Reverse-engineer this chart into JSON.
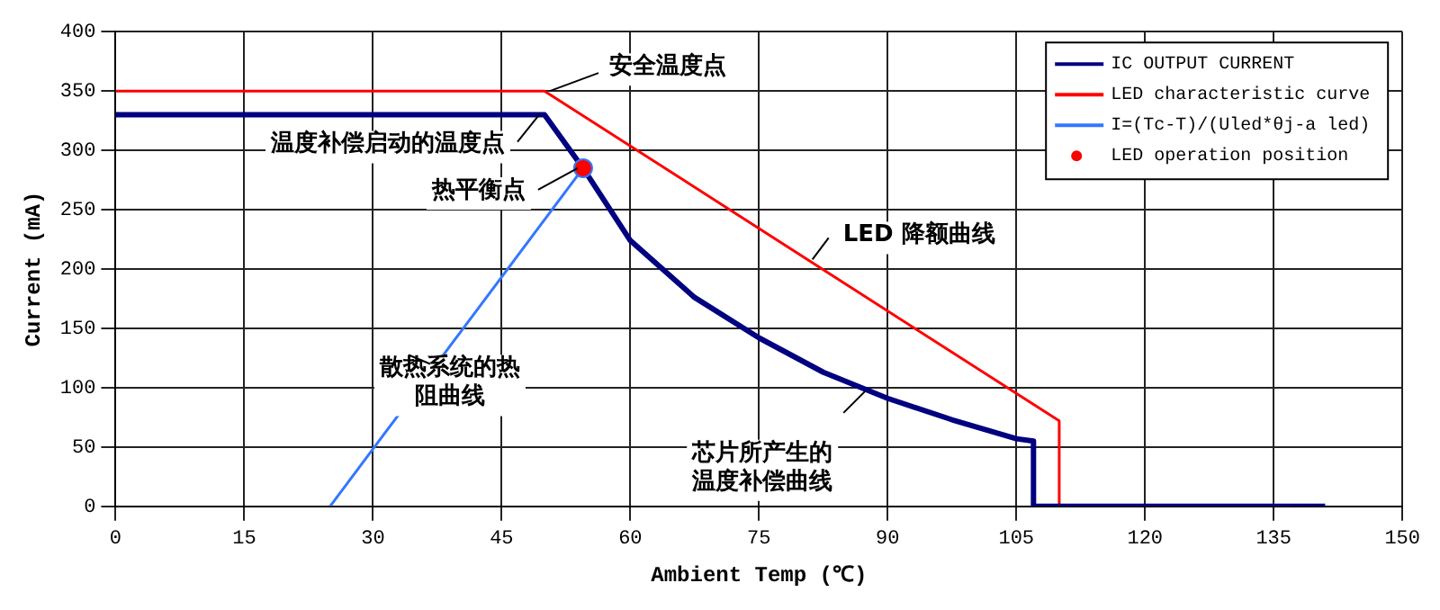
{
  "chart_data": {
    "type": "line",
    "xlabel": "Ambient Temp (℃)",
    "ylabel": "Current (mA)",
    "xlim": [
      0,
      150
    ],
    "xticks": [
      0,
      15,
      30,
      45,
      60,
      75,
      90,
      105,
      120,
      135,
      150
    ],
    "ylim": [
      0,
      400
    ],
    "yticks": [
      0,
      50,
      100,
      150,
      200,
      250,
      300,
      350,
      400
    ],
    "grid": true,
    "legend": "top right",
    "marker": "none",
    "line_style": "solid",
    "series": [
      {
        "name": "IC OUTPUT CURRENT",
        "color": "#000080",
        "x": [
          0,
          50,
          54.5,
          60,
          67.5,
          75,
          82.5,
          90,
          97.5,
          105,
          107,
          107,
          141
        ],
        "values": [
          330,
          330,
          285,
          224,
          176,
          142,
          113,
          91,
          73,
          57,
          55,
          0,
          0
        ]
      },
      {
        "name": "LED characteristic curve",
        "color": "#ff0000",
        "x": [
          0,
          50,
          110,
          110,
          137
        ],
        "values": [
          350,
          350,
          72,
          0,
          0
        ]
      },
      {
        "name": "I=(Tc-T)/(Uled*θj-a led)",
        "color": "#3377ff",
        "x": [
          25,
          54.5
        ],
        "values": [
          0,
          285
        ]
      },
      {
        "name": "LED operation position",
        "type": "scatter",
        "marker": "circle",
        "color": "#ff0000",
        "x": [
          54.5
        ],
        "values": [
          285
        ]
      }
    ],
    "annotations": [
      {
        "text": "安全温度点",
        "x": 50,
        "y": 350
      },
      {
        "text": "温度补偿启动的温度点",
        "x": 50,
        "y": 330
      },
      {
        "text": "热平衡点",
        "x": 54.5,
        "y": 285
      },
      {
        "text": "LED 降额曲线",
        "x": 80.6,
        "y": 208
      },
      {
        "text": "散热系统的热阻曲线",
        "x": 37.3,
        "y": 120
      },
      {
        "text": "芯片所产生的温度补偿曲线",
        "x": 88,
        "y": 97
      }
    ]
  }
}
